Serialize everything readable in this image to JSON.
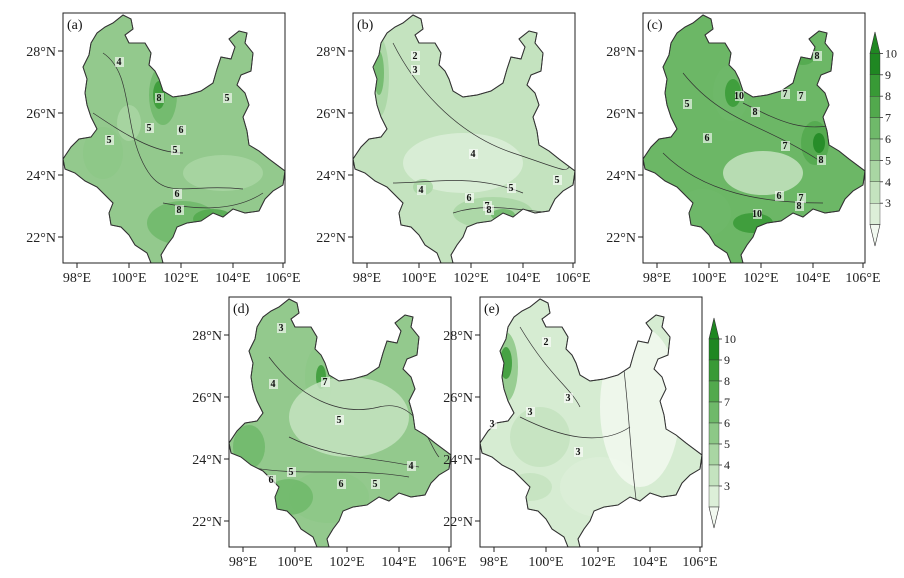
{
  "panels": [
    {
      "label": "(a)",
      "lat_ticks": [
        "28°N",
        "26°N",
        "24°N",
        "22°N"
      ],
      "lon_ticks": [
        "98°E",
        "100°E",
        "102°E",
        "104°E",
        "106°E"
      ],
      "contour_labels": [
        "4",
        "8",
        "5",
        "5",
        "6",
        "5",
        "5",
        "6",
        "8"
      ],
      "fill": "#93c98d"
    },
    {
      "label": "(b)",
      "lat_ticks": [
        "28°N",
        "26°N",
        "24°N",
        "22°N"
      ],
      "lon_ticks": [
        "98°E",
        "100°E",
        "102°E",
        "104°E",
        "106°E"
      ],
      "contour_labels": [
        "2",
        "3",
        "4",
        "4",
        "5",
        "5",
        "6",
        "7",
        "8"
      ],
      "fill": "#c4e3bf"
    },
    {
      "label": "(c)",
      "lat_ticks": [
        "28°N",
        "26°N",
        "24°N",
        "22°N"
      ],
      "lon_ticks": [
        "98°E",
        "100°E",
        "102°E",
        "104°E",
        "106°E"
      ],
      "contour_labels": [
        "8",
        "7",
        "5",
        "10",
        "8",
        "7",
        "6",
        "7",
        "8",
        "6",
        "7",
        "8",
        "10"
      ],
      "fill": "#6cb766"
    },
    {
      "label": "(d)",
      "lat_ticks": [
        "28°N",
        "26°N",
        "24°N",
        "22°N"
      ],
      "lon_ticks": [
        "98°E",
        "100°E",
        "102°E",
        "104°E",
        "106°E"
      ],
      "contour_labels": [
        "3",
        "4",
        "7",
        "5",
        "5",
        "4",
        "6",
        "6",
        "5"
      ],
      "fill": "#93c98d"
    },
    {
      "label": "(e)",
      "lat_ticks": [
        "28°N",
        "26°N",
        "24°N",
        "22°N"
      ],
      "lon_ticks": [
        "98°E",
        "100°E",
        "102°E",
        "104°E",
        "106°E"
      ],
      "contour_labels": [
        "2",
        "3",
        "3",
        "3",
        "3"
      ],
      "fill": "#d6ecd2"
    }
  ],
  "colorbars": [
    {
      "ticks": [
        "10",
        "9",
        "8",
        "7",
        "6",
        "5",
        "4",
        "3"
      ]
    },
    {
      "ticks": [
        "10",
        "9",
        "8",
        "7",
        "6",
        "5",
        "4",
        "3"
      ]
    }
  ],
  "scale_colors": [
    "#f2f9f0",
    "#dcefd8",
    "#c4e3bf",
    "#a9d6a3",
    "#8dc887",
    "#6fb96a",
    "#52a94d",
    "#389a36",
    "#1f8722"
  ]
}
